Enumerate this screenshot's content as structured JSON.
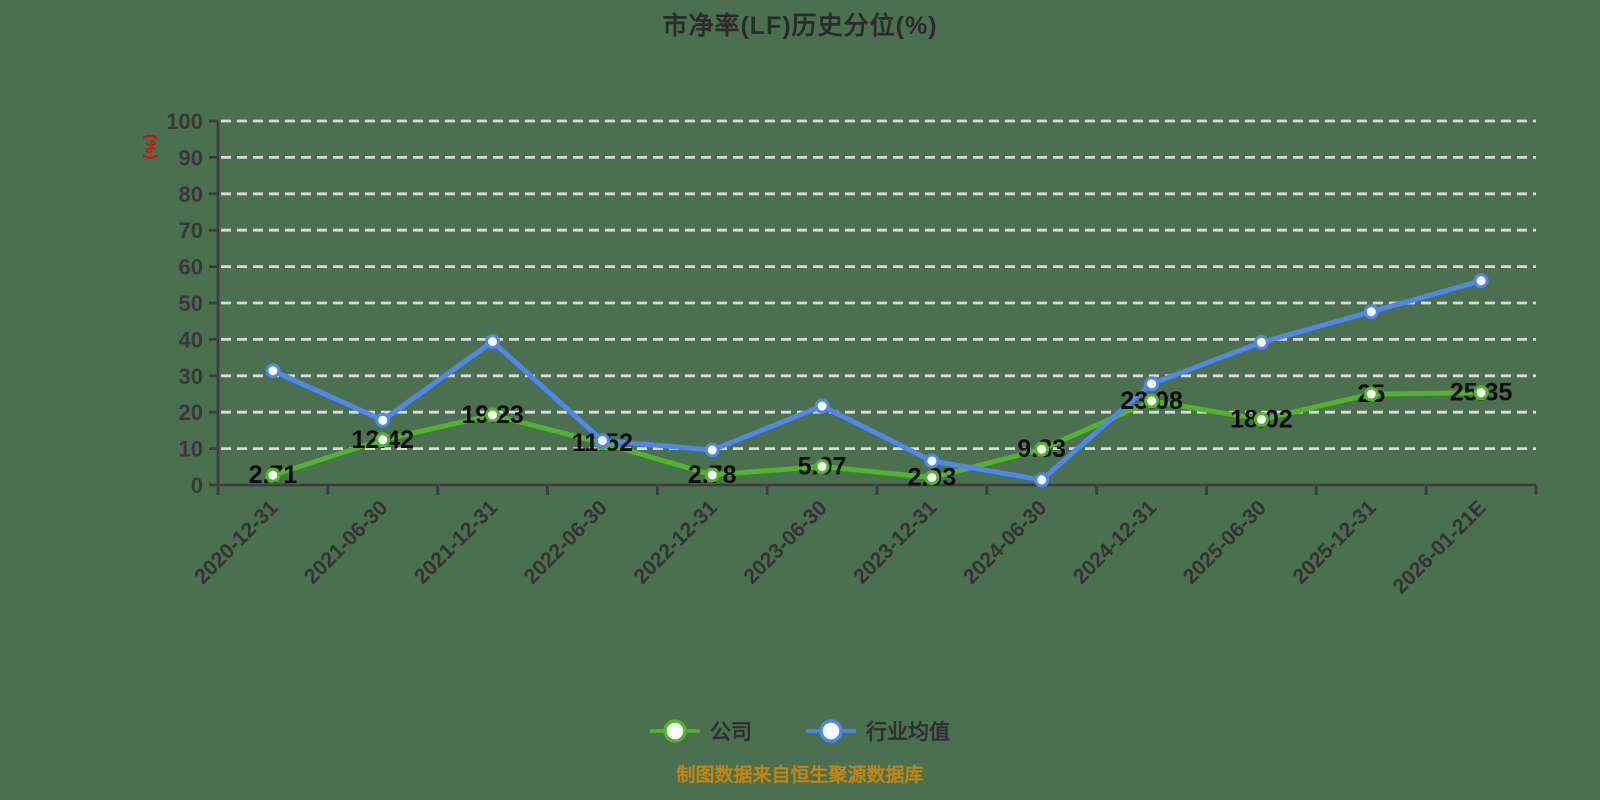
{
  "title": "市净率(LF)历史分位(%)",
  "y_axis_unit": "(%)",
  "source_note": "制图数据来自恒生聚源数据库",
  "colors": {
    "background": "#4a7050",
    "grid": "#d9d9d9",
    "axis": "#3e3e3e",
    "tick_label": "#383838",
    "x_tick_label": "#333333",
    "title": "#2b2b2b",
    "value_label": "#0d0d0d",
    "unit_label": "#ee0000",
    "caption": "#c5860f",
    "legend_label": "#2f2f2f",
    "marker_fill": "#ffffff"
  },
  "chart_data": {
    "type": "line",
    "title": "市净率(LF)历史分位(%)",
    "xlabel": "",
    "ylabel": "(%)",
    "ylim": [
      0,
      100
    ],
    "y_ticks": [
      0,
      10,
      20,
      30,
      40,
      50,
      60,
      70,
      80,
      90,
      100
    ],
    "grid": "dashed horizontal",
    "legend_position": "bottom",
    "categories": [
      "2020-12-31",
      "2021-06-30",
      "2021-12-31",
      "2022-06-30",
      "2022-12-31",
      "2023-06-30",
      "2023-12-31",
      "2024-06-30",
      "2024-12-31",
      "2025-06-30",
      "2025-12-31",
      "2026-01-21E"
    ],
    "series": [
      {
        "name": "公司",
        "color": "#51b42a",
        "show_labels": true,
        "values": [
          2.71,
          12.42,
          19.23,
          11.52,
          2.78,
          5.07,
          2.03,
          9.83,
          23.08,
          18.02,
          25,
          25.35
        ],
        "labels": [
          "2.71",
          "12.42",
          "19.23",
          "11.52",
          "2.78",
          "5.07",
          "2.03",
          "9.83",
          "23.08",
          "18.02",
          "25",
          "25.35"
        ]
      },
      {
        "name": "行业均值",
        "color": "#5086ef",
        "show_labels": false,
        "values": [
          31.4,
          17.8,
          39.4,
          12.2,
          9.6,
          21.7,
          6.6,
          1.4,
          27.8,
          39.2,
          47.6,
          56.1
        ],
        "labels": []
      }
    ]
  }
}
